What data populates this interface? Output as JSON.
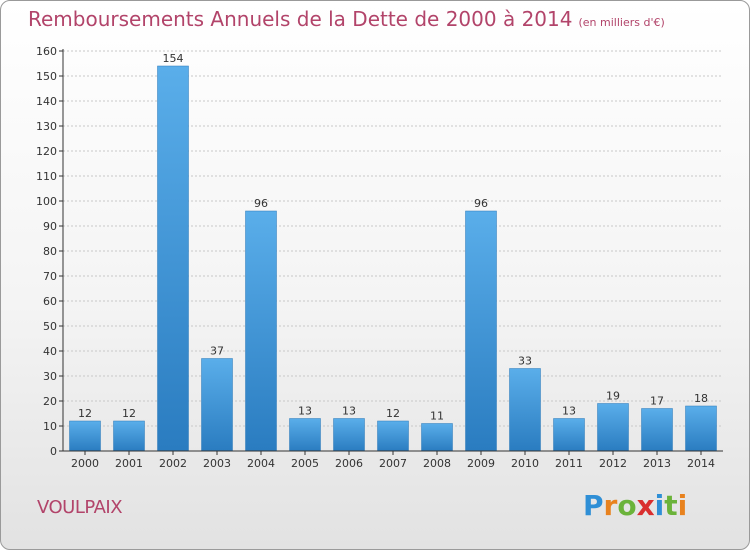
{
  "header": {
    "title": "Remboursements Annuels de la Dette de 2000 à 2014",
    "unit": "(en milliers d'€)"
  },
  "footer": {
    "commune": "VOULPAIX",
    "logo_letters": [
      "P",
      "r",
      "o",
      "x",
      "i",
      "t",
      "i"
    ],
    "logo_colors": [
      "#2f8fd6",
      "#e8821e",
      "#6bb33a",
      "#d92e2e",
      "#2f8fd6",
      "#6bb33a",
      "#e8821e"
    ]
  },
  "colors": {
    "title": "#b2446a",
    "bar_light": "#5aaeea",
    "bar_dark": "#2a7cc0",
    "axis": "#333333",
    "grid": "#c8c8c8"
  },
  "chart_data": {
    "type": "bar",
    "title": "Remboursements Annuels de la Dette de 2000 à 2014",
    "xlabel": "",
    "ylabel": "",
    "categories": [
      "2000",
      "2001",
      "2002",
      "2003",
      "2004",
      "2005",
      "2006",
      "2007",
      "2008",
      "2009",
      "2010",
      "2011",
      "2012",
      "2013",
      "2014"
    ],
    "values": [
      12,
      12,
      154,
      37,
      96,
      13,
      13,
      12,
      11,
      96,
      33,
      13,
      19,
      17,
      18
    ],
    "ylim": [
      0,
      160
    ],
    "yticks": [
      0,
      10,
      20,
      30,
      40,
      50,
      60,
      70,
      80,
      90,
      100,
      110,
      120,
      130,
      140,
      150,
      160
    ],
    "grid": true,
    "legend": "none"
  }
}
